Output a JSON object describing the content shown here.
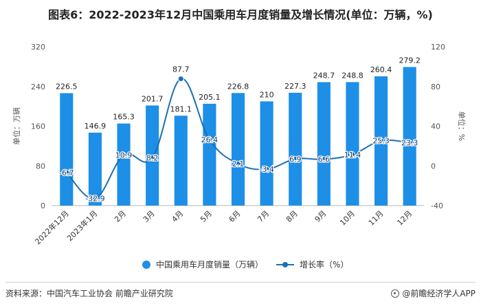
{
  "title": "图表6：2022-2023年12月中国乘用车月度销量及增长情况(单位：万辆，%)",
  "chart_data": {
    "type": "bar+line",
    "categories": [
      "2022年12月",
      "2023年1月",
      "2月",
      "3月",
      "4月",
      "5月",
      "6月",
      "7月",
      "8月",
      "9月",
      "10月",
      "11月",
      "12月"
    ],
    "series": [
      {
        "name": "中国乘用车月度销量（万辆）",
        "type": "bar",
        "axis": "left",
        "values": [
          226.5,
          146.9,
          165.3,
          201.7,
          181.1,
          205.1,
          226.8,
          210,
          227.3,
          248.7,
          248.8,
          260.4,
          279.2
        ],
        "labels": [
          "226.5",
          "146.9",
          "165.3",
          "201.7",
          "181.1",
          "205.1",
          "226.8",
          "210",
          "227.3",
          "248.7",
          "248.8",
          "260.4",
          "279.2"
        ]
      },
      {
        "name": "增长率（%）",
        "type": "line",
        "axis": "right",
        "values": [
          -6.7,
          -32.9,
          10.9,
          8.2,
          87.7,
          26.4,
          2.1,
          -3.4,
          6.9,
          6.6,
          11.4,
          25.3,
          23.3
        ],
        "labels": [
          "-6.7",
          "-32.9",
          "10.9",
          "8.2",
          "87.7",
          "26.4",
          "2.1",
          "-3.4",
          "6.9",
          "6.6",
          "11.4",
          "25.3",
          "23.3"
        ]
      }
    ],
    "left_axis": {
      "label": "单位：万辆",
      "range": [
        0,
        320
      ],
      "ticks": [
        "0",
        "80",
        "160",
        "240",
        "320"
      ]
    },
    "right_axis": {
      "label": "单位：%",
      "range": [
        -40,
        120
      ],
      "ticks": [
        "-40",
        "0",
        "40",
        "80",
        "120"
      ]
    },
    "colors": {
      "bar": "#1e8fe6",
      "line": "#1a6fb5",
      "axis": "#999999",
      "text": "#333333"
    },
    "legend": "bottom-center"
  },
  "legend": {
    "bar_label": "中国乘用车月度销量（万辆）",
    "line_label": "增长率（%）"
  },
  "footer": {
    "source": "资料来源：中国汽车工业协会 前瞻产业研究院",
    "brand": "@前瞻经济学人APP"
  }
}
